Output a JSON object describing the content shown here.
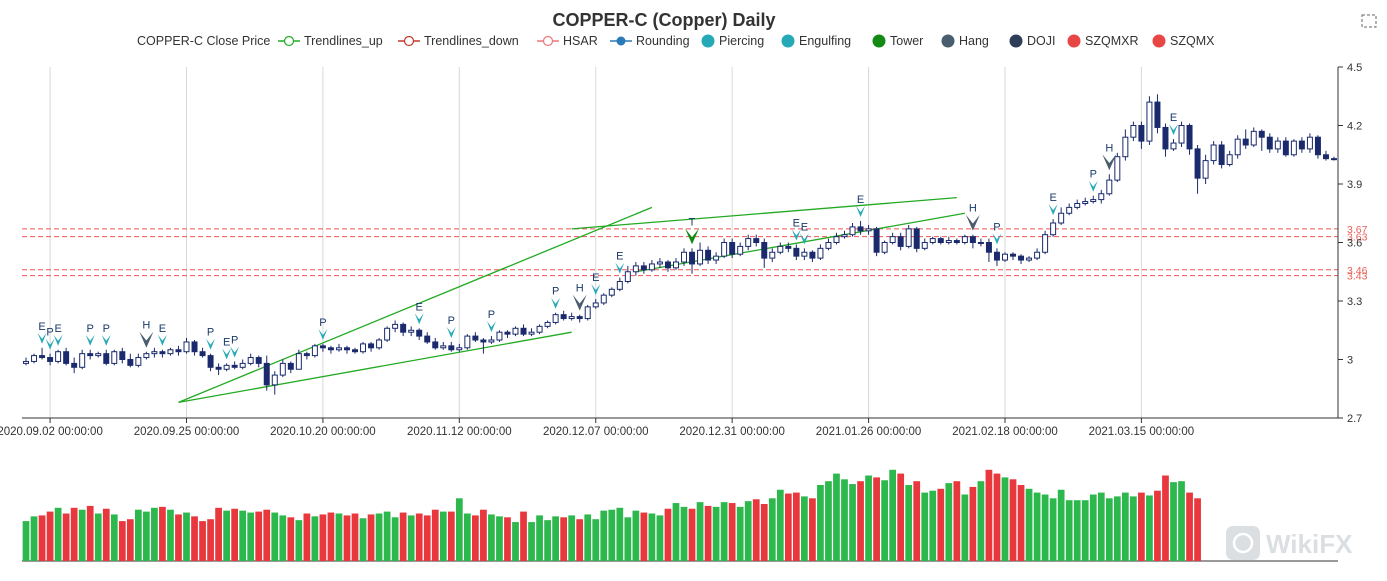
{
  "chart_data": {
    "type": "candlestick",
    "title": "COPPER-C (Copper) Daily",
    "legend": [
      {
        "name": "COPPER-C Close Price",
        "kind": "none",
        "color": "#333333"
      },
      {
        "name": "Trendlines_up",
        "kind": "line",
        "color": "#22aa22"
      },
      {
        "name": "Trendlines_down",
        "kind": "line",
        "color": "#c0392b"
      },
      {
        "name": "HSAR",
        "kind": "line",
        "color": "#ee7777"
      },
      {
        "name": "Rounding",
        "kind": "dotline",
        "color": "#2a7ab8"
      },
      {
        "name": "Piercing",
        "kind": "dot",
        "color": "#26a9b7"
      },
      {
        "name": "Engulfing",
        "kind": "dot",
        "color": "#26a9b7"
      },
      {
        "name": "Tower",
        "kind": "dot",
        "color": "#138a13"
      },
      {
        "name": "Hang",
        "kind": "dot",
        "color": "#4a5d6e"
      },
      {
        "name": "DOJI",
        "kind": "dot",
        "color": "#2e3e58"
      },
      {
        "name": "SZQMXR",
        "kind": "dot",
        "color": "#e84545"
      },
      {
        "name": "SZQMX",
        "kind": "dot",
        "color": "#e84545"
      }
    ],
    "x_tick_labels": [
      "2020.09.02 00:00:00",
      "2020.09.25 00:00:00",
      "2020.10.20 00:00:00",
      "2020.11.12 00:00:00",
      "2020.12.07 00:00:00",
      "2020.12.31 00:00:00",
      "2021.01.26 00:00:00",
      "2021.02.18 00:00:00",
      "2021.03.15 00:00:00"
    ],
    "x_tick_bar_index": [
      3,
      20,
      37,
      54,
      71,
      88,
      105,
      122,
      139
    ],
    "y_ticks": [
      2.7,
      3,
      3.3,
      3.6,
      3.9,
      4.2,
      4.5
    ],
    "y_tick_labels": [
      "2.7",
      "3",
      "3.3",
      "3.6",
      "3.9",
      "4.2",
      "4.5"
    ],
    "ylim": [
      2.7,
      4.5
    ],
    "hsar_levels": [
      3.67,
      3.63,
      3.46,
      3.43
    ],
    "hsar_labels": [
      "3.67",
      "3.63",
      "3.46",
      "3.43"
    ],
    "up_color": "#ffffff",
    "down_color": "#1a2a6c",
    "vol_up_color": "#2db84d",
    "vol_down_color": "#e8383d",
    "candles": [
      [
        2.98,
        2.99,
        3.01,
        2.97
      ],
      [
        2.99,
        3.02,
        3.03,
        2.98
      ],
      [
        3.02,
        3.01,
        3.06,
        3.0
      ],
      [
        3.01,
        2.99,
        3.03,
        2.97
      ],
      [
        2.99,
        3.04,
        3.05,
        2.98
      ],
      [
        3.04,
        2.98,
        3.06,
        2.97
      ],
      [
        2.98,
        2.96,
        3.01,
        2.93
      ],
      [
        2.96,
        3.03,
        3.05,
        2.95
      ],
      [
        3.03,
        3.02,
        3.05,
        3.0
      ],
      [
        3.02,
        3.03,
        3.04,
        3.01
      ],
      [
        3.03,
        2.98,
        3.05,
        2.97
      ],
      [
        2.98,
        3.04,
        3.05,
        2.97
      ],
      [
        3.04,
        3.0,
        3.06,
        2.98
      ],
      [
        3.0,
        2.97,
        3.03,
        2.96
      ],
      [
        2.97,
        3.01,
        3.03,
        2.96
      ],
      [
        3.01,
        3.03,
        3.04,
        3.0
      ],
      [
        3.03,
        3.04,
        3.06,
        3.01
      ],
      [
        3.04,
        3.03,
        3.05,
        3.01
      ],
      [
        3.03,
        3.05,
        3.06,
        3.02
      ],
      [
        3.05,
        3.04,
        3.07,
        3.02
      ],
      [
        3.04,
        3.09,
        3.11,
        3.03
      ],
      [
        3.09,
        3.04,
        3.1,
        3.02
      ],
      [
        3.04,
        3.02,
        3.06,
        3.01
      ],
      [
        3.02,
        2.96,
        3.03,
        2.94
      ],
      [
        2.96,
        2.95,
        2.98,
        2.92
      ],
      [
        2.95,
        2.97,
        2.98,
        2.94
      ],
      [
        2.97,
        2.96,
        2.99,
        2.95
      ],
      [
        2.96,
        2.98,
        3.0,
        2.95
      ],
      [
        2.98,
        3.01,
        3.03,
        2.97
      ],
      [
        3.01,
        2.98,
        3.02,
        2.96
      ],
      [
        2.98,
        2.87,
        3.02,
        2.84
      ],
      [
        2.87,
        2.92,
        2.94,
        2.82
      ],
      [
        2.92,
        2.98,
        3.0,
        2.91
      ],
      [
        2.98,
        2.95,
        2.99,
        2.93
      ],
      [
        2.95,
        3.03,
        3.05,
        2.95
      ],
      [
        3.03,
        3.02,
        3.04,
        3.0
      ],
      [
        3.02,
        3.07,
        3.08,
        3.01
      ],
      [
        3.07,
        3.06,
        3.08,
        3.04
      ],
      [
        3.06,
        3.05,
        3.07,
        3.03
      ],
      [
        3.05,
        3.06,
        3.08,
        3.04
      ],
      [
        3.06,
        3.05,
        3.07,
        3.03
      ],
      [
        3.05,
        3.04,
        3.06,
        3.03
      ],
      [
        3.04,
        3.08,
        3.09,
        3.03
      ],
      [
        3.08,
        3.06,
        3.09,
        3.04
      ],
      [
        3.06,
        3.1,
        3.11,
        3.05
      ],
      [
        3.1,
        3.16,
        3.17,
        3.09
      ],
      [
        3.16,
        3.18,
        3.2,
        3.14
      ],
      [
        3.18,
        3.14,
        3.19,
        3.12
      ],
      [
        3.14,
        3.15,
        3.17,
        3.12
      ],
      [
        3.15,
        3.12,
        3.16,
        3.1
      ],
      [
        3.12,
        3.09,
        3.14,
        3.08
      ],
      [
        3.09,
        3.06,
        3.11,
        3.05
      ],
      [
        3.06,
        3.07,
        3.09,
        3.05
      ],
      [
        3.07,
        3.05,
        3.09,
        3.04
      ],
      [
        3.05,
        3.06,
        3.08,
        3.04
      ],
      [
        3.06,
        3.12,
        3.13,
        3.05
      ],
      [
        3.12,
        3.1,
        3.14,
        3.09
      ],
      [
        3.1,
        3.09,
        3.11,
        3.03
      ],
      [
        3.09,
        3.1,
        3.12,
        3.08
      ],
      [
        3.1,
        3.14,
        3.15,
        3.09
      ],
      [
        3.14,
        3.13,
        3.15,
        3.11
      ],
      [
        3.13,
        3.16,
        3.17,
        3.12
      ],
      [
        3.16,
        3.13,
        3.18,
        3.12
      ],
      [
        3.13,
        3.14,
        3.16,
        3.12
      ],
      [
        3.14,
        3.17,
        3.18,
        3.13
      ],
      [
        3.17,
        3.19,
        3.2,
        3.16
      ],
      [
        3.19,
        3.23,
        3.24,
        3.18
      ],
      [
        3.23,
        3.21,
        3.25,
        3.2
      ],
      [
        3.21,
        3.22,
        3.24,
        3.2
      ],
      [
        3.22,
        3.21,
        3.23,
        3.19
      ],
      [
        3.21,
        3.27,
        3.28,
        3.2
      ],
      [
        3.27,
        3.29,
        3.31,
        3.26
      ],
      [
        3.29,
        3.33,
        3.34,
        3.28
      ],
      [
        3.33,
        3.36,
        3.37,
        3.32
      ],
      [
        3.36,
        3.4,
        3.42,
        3.35
      ],
      [
        3.4,
        3.45,
        3.48,
        3.39
      ],
      [
        3.45,
        3.48,
        3.5,
        3.43
      ],
      [
        3.48,
        3.46,
        3.5,
        3.44
      ],
      [
        3.46,
        3.49,
        3.51,
        3.45
      ],
      [
        3.49,
        3.5,
        3.52,
        3.47
      ],
      [
        3.5,
        3.47,
        3.51,
        3.45
      ],
      [
        3.47,
        3.5,
        3.52,
        3.46
      ],
      [
        3.5,
        3.55,
        3.57,
        3.48
      ],
      [
        3.55,
        3.49,
        3.57,
        3.44
      ],
      [
        3.49,
        3.56,
        3.6,
        3.48
      ],
      [
        3.56,
        3.51,
        3.58,
        3.49
      ],
      [
        3.51,
        3.53,
        3.55,
        3.49
      ],
      [
        3.53,
        3.6,
        3.62,
        3.52
      ],
      [
        3.6,
        3.54,
        3.62,
        3.52
      ],
      [
        3.54,
        3.58,
        3.6,
        3.53
      ],
      [
        3.58,
        3.62,
        3.64,
        3.56
      ],
      [
        3.62,
        3.6,
        3.64,
        3.58
      ],
      [
        3.6,
        3.52,
        3.62,
        3.47
      ],
      [
        3.52,
        3.55,
        3.57,
        3.5
      ],
      [
        3.55,
        3.58,
        3.6,
        3.54
      ],
      [
        3.58,
        3.57,
        3.6,
        3.55
      ],
      [
        3.57,
        3.53,
        3.59,
        3.51
      ],
      [
        3.53,
        3.55,
        3.57,
        3.51
      ],
      [
        3.55,
        3.52,
        3.56,
        3.5
      ],
      [
        3.52,
        3.57,
        3.59,
        3.51
      ],
      [
        3.57,
        3.6,
        3.62,
        3.56
      ],
      [
        3.6,
        3.63,
        3.65,
        3.59
      ],
      [
        3.63,
        3.64,
        3.66,
        3.62
      ],
      [
        3.64,
        3.68,
        3.7,
        3.63
      ],
      [
        3.68,
        3.66,
        3.71,
        3.64
      ],
      [
        3.66,
        3.67,
        3.69,
        3.64
      ],
      [
        3.67,
        3.55,
        3.68,
        3.53
      ],
      [
        3.55,
        3.6,
        3.61,
        3.54
      ],
      [
        3.6,
        3.63,
        3.65,
        3.59
      ],
      [
        3.63,
        3.58,
        3.65,
        3.56
      ],
      [
        3.58,
        3.67,
        3.69,
        3.57
      ],
      [
        3.67,
        3.57,
        3.68,
        3.55
      ],
      [
        3.57,
        3.6,
        3.62,
        3.56
      ],
      [
        3.6,
        3.62,
        3.63,
        3.59
      ],
      [
        3.62,
        3.6,
        3.63,
        3.59
      ],
      [
        3.6,
        3.61,
        3.63,
        3.59
      ],
      [
        3.61,
        3.6,
        3.62,
        3.59
      ],
      [
        3.6,
        3.63,
        3.64,
        3.59
      ],
      [
        3.63,
        3.6,
        3.64,
        3.57
      ],
      [
        3.6,
        3.6,
        3.62,
        3.58
      ],
      [
        3.6,
        3.55,
        3.62,
        3.5
      ],
      [
        3.55,
        3.51,
        3.57,
        3.48
      ],
      [
        3.51,
        3.54,
        3.55,
        3.5
      ],
      [
        3.54,
        3.53,
        3.55,
        3.51
      ],
      [
        3.53,
        3.51,
        3.54,
        3.49
      ],
      [
        3.51,
        3.52,
        3.53,
        3.5
      ],
      [
        3.52,
        3.55,
        3.57,
        3.51
      ],
      [
        3.55,
        3.64,
        3.66,
        3.54
      ],
      [
        3.64,
        3.7,
        3.72,
        3.63
      ],
      [
        3.7,
        3.75,
        3.78,
        3.69
      ],
      [
        3.75,
        3.78,
        3.8,
        3.74
      ],
      [
        3.78,
        3.8,
        3.82,
        3.77
      ],
      [
        3.8,
        3.81,
        3.83,
        3.79
      ],
      [
        3.81,
        3.82,
        3.84,
        3.8
      ],
      [
        3.82,
        3.85,
        3.87,
        3.8
      ],
      [
        3.85,
        3.92,
        3.95,
        3.84
      ],
      [
        3.92,
        4.04,
        4.06,
        3.91
      ],
      [
        4.04,
        4.14,
        4.18,
        4.02
      ],
      [
        4.14,
        4.2,
        4.22,
        4.12
      ],
      [
        4.2,
        4.12,
        4.22,
        4.08
      ],
      [
        4.12,
        4.32,
        4.35,
        4.1
      ],
      [
        4.32,
        4.19,
        4.36,
        4.16
      ],
      [
        4.19,
        4.08,
        4.21,
        4.04
      ],
      [
        4.08,
        4.11,
        4.13,
        4.07
      ],
      [
        4.11,
        4.2,
        4.22,
        4.09
      ],
      [
        4.2,
        4.08,
        4.21,
        4.05
      ],
      [
        4.08,
        3.93,
        4.1,
        3.85
      ],
      [
        3.93,
        4.02,
        4.05,
        3.9
      ],
      [
        4.02,
        4.1,
        4.12,
        4.0
      ],
      [
        4.1,
        4.0,
        4.12,
        3.98
      ],
      [
        4.0,
        4.05,
        4.07,
        3.99
      ],
      [
        4.05,
        4.13,
        4.15,
        4.03
      ],
      [
        4.13,
        4.1,
        4.18,
        4.08
      ],
      [
        4.1,
        4.17,
        4.19,
        4.09
      ],
      [
        4.17,
        4.14,
        4.18,
        4.07
      ],
      [
        4.14,
        4.08,
        4.16,
        4.06
      ],
      [
        4.08,
        4.12,
        4.14,
        4.06
      ],
      [
        4.12,
        4.05,
        4.14,
        4.04
      ],
      [
        4.05,
        4.12,
        4.13,
        4.04
      ],
      [
        4.12,
        4.08,
        4.14,
        4.06
      ],
      [
        4.08,
        4.14,
        4.16,
        4.06
      ],
      [
        4.14,
        4.05,
        4.15,
        4.03
      ],
      [
        4.05,
        4.03,
        4.07,
        4.02
      ],
      [
        4.03,
        4.03,
        4.04,
        4.02
      ]
    ],
    "volume": [
      42,
      47,
      48,
      52,
      56,
      50,
      56,
      54,
      58,
      50,
      55,
      49,
      42,
      44,
      54,
      52,
      56,
      57,
      54,
      49,
      51,
      47,
      42,
      44,
      56,
      53,
      55,
      53,
      51,
      52,
      54,
      51,
      48,
      46,
      43,
      50,
      47,
      49,
      51,
      50,
      48,
      50,
      45,
      49,
      50,
      52,
      46,
      51,
      48,
      50,
      48,
      54,
      52,
      52,
      66,
      50,
      48,
      54,
      49,
      47,
      46,
      41,
      52,
      41,
      48,
      43,
      47,
      46,
      48,
      44,
      49,
      44,
      53,
      54,
      56,
      46,
      53,
      51,
      50,
      48,
      55,
      61,
      57,
      55,
      62,
      58,
      57,
      62,
      61,
      57,
      63,
      65,
      60,
      66,
      75,
      71,
      72,
      68,
      66,
      80,
      84,
      92,
      86,
      81,
      84,
      90,
      88,
      85,
      96,
      92,
      80,
      84,
      72,
      74,
      76,
      82,
      84,
      70,
      78,
      84,
      96,
      92,
      88,
      86,
      80,
      76,
      72,
      70,
      66,
      75,
      64,
      64,
      64,
      70,
      72,
      66,
      68,
      72,
      68,
      72,
      69,
      74,
      90,
      83,
      84,
      72,
      66
    ],
    "trendlines_up": [
      {
        "start": [
          19,
          2.78
        ],
        "end": [
          78,
          3.78
        ]
      },
      {
        "start": [
          19,
          2.78
        ],
        "end": [
          68,
          3.14
        ]
      },
      {
        "start": [
          68,
          3.67
        ],
        "end": [
          116,
          3.83
        ]
      },
      {
        "start": [
          76,
          3.45
        ],
        "end": [
          117,
          3.75
        ]
      }
    ],
    "markers": [
      {
        "bar": 2,
        "type": "Engulfing",
        "label": "E"
      },
      {
        "bar": 3,
        "type": "Piercing",
        "label": "P"
      },
      {
        "bar": 4,
        "type": "Engulfing",
        "label": "E"
      },
      {
        "bar": 8,
        "type": "Piercing",
        "label": "P"
      },
      {
        "bar": 10,
        "type": "Piercing",
        "label": "P"
      },
      {
        "bar": 15,
        "type": "Hang",
        "label": "H"
      },
      {
        "bar": 17,
        "type": "Engulfing",
        "label": "E"
      },
      {
        "bar": 23,
        "type": "Piercing",
        "label": "P"
      },
      {
        "bar": 25,
        "type": "Engulfing",
        "label": "E"
      },
      {
        "bar": 26,
        "type": "Piercing",
        "label": "P"
      },
      {
        "bar": 37,
        "type": "Piercing",
        "label": "P"
      },
      {
        "bar": 49,
        "type": "Engulfing",
        "label": "E"
      },
      {
        "bar": 53,
        "type": "Piercing",
        "label": "P"
      },
      {
        "bar": 58,
        "type": "Piercing",
        "label": "P"
      },
      {
        "bar": 66,
        "type": "Piercing",
        "label": "P"
      },
      {
        "bar": 69,
        "type": "Hang",
        "label": "H"
      },
      {
        "bar": 71,
        "type": "Engulfing",
        "label": "E"
      },
      {
        "bar": 74,
        "type": "Engulfing",
        "label": "E"
      },
      {
        "bar": 83,
        "type": "Tower",
        "label": "T"
      },
      {
        "bar": 96,
        "type": "Engulfing",
        "label": "E"
      },
      {
        "bar": 97,
        "type": "Engulfing",
        "label": "E"
      },
      {
        "bar": 104,
        "type": "Engulfing",
        "label": "E"
      },
      {
        "bar": 118,
        "type": "Hang",
        "label": "H"
      },
      {
        "bar": 121,
        "type": "Piercing",
        "label": "P"
      },
      {
        "bar": 128,
        "type": "Engulfing",
        "label": "E"
      },
      {
        "bar": 133,
        "type": "Piercing",
        "label": "P"
      },
      {
        "bar": 135,
        "type": "Hang",
        "label": "H"
      },
      {
        "bar": 143,
        "type": "Engulfing",
        "label": "E"
      }
    ],
    "watermark": "WikiFX"
  }
}
